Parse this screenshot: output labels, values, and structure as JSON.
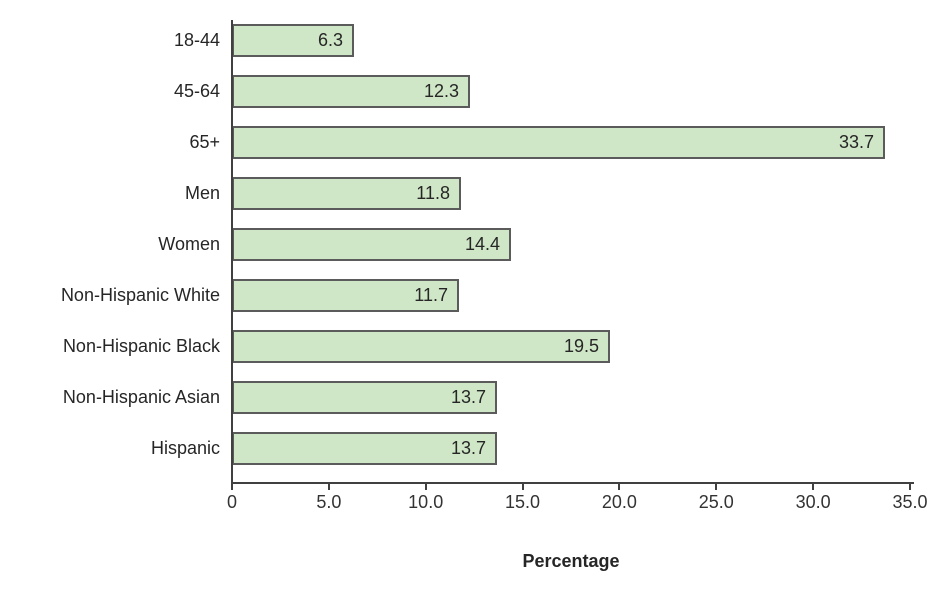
{
  "chart_data": {
    "type": "bar",
    "orientation": "horizontal",
    "title": "",
    "xlabel": "Percentage",
    "ylabel": "",
    "categories": [
      "18-44",
      "45-64",
      "65+",
      "Men",
      "Women",
      "Non-Hispanic White",
      "Non-Hispanic Black",
      "Non-Hispanic Asian",
      "Hispanic"
    ],
    "values": [
      6.3,
      12.3,
      33.7,
      11.8,
      14.4,
      11.7,
      19.5,
      13.7,
      13.7
    ],
    "value_labels": [
      "6.3",
      "12.3",
      "33.7",
      "11.8",
      "14.4",
      "11.7",
      "19.5",
      "13.7",
      "13.7"
    ],
    "xlim": [
      0,
      35
    ],
    "x_ticks": [
      0,
      5,
      10,
      15,
      20,
      25,
      30,
      35
    ],
    "x_tick_labels": [
      "0",
      "5.0",
      "10.0",
      "15.0",
      "20.0",
      "25.0",
      "30.0",
      "35.0"
    ],
    "grid": false,
    "legend": false,
    "value_labels_position": "inside-end",
    "colors": {
      "bar_fill": "#cfe7c6",
      "bar_border": "#5b5b5b",
      "axis": "#404040",
      "label_text": "#262626",
      "tick_text": "#333333",
      "background": "#ffffff"
    }
  }
}
